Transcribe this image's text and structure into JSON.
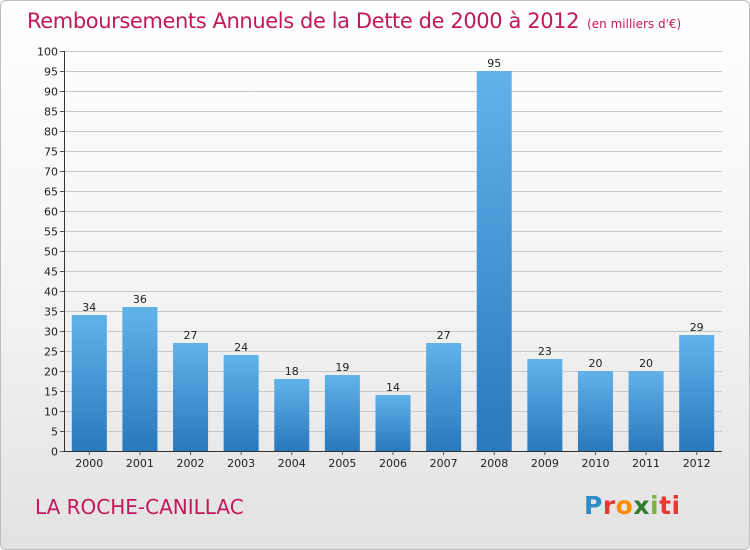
{
  "title": "Remboursements Annuels de la Dette de 2000 à 2012",
  "unit": "(en milliers d'€)",
  "commune": "LA ROCHE-CANILLAC",
  "logo": {
    "text": "Proxiti",
    "letters": [
      "P",
      "r",
      "o",
      "x",
      "i",
      "ti"
    ]
  },
  "colors": {
    "bar_top": "#62b2ea",
    "bar_bottom": "#2a78bd",
    "title": "#c2185b",
    "grid": "#c8c8c8"
  },
  "chart_data": {
    "type": "bar",
    "title": "Remboursements Annuels de la Dette de 2000 à 2012",
    "xlabel": "",
    "ylabel": "",
    "categories": [
      "2000",
      "2001",
      "2002",
      "2003",
      "2004",
      "2005",
      "2006",
      "2007",
      "2008",
      "2009",
      "2010",
      "2011",
      "2012"
    ],
    "values": [
      34,
      36,
      27,
      24,
      18,
      19,
      14,
      27,
      95,
      23,
      20,
      20,
      29
    ],
    "ylim": [
      0,
      100
    ],
    "ytick_step": 5,
    "grid": true,
    "data_labels": true
  }
}
